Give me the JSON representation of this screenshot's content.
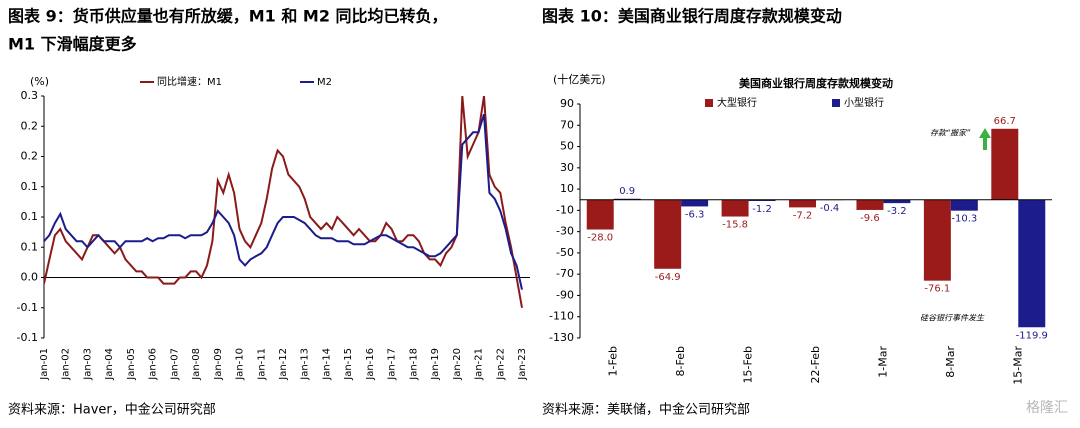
{
  "header": {
    "figure9": [
      "图表 9：货币供应量也有所放缓，M1 和 M2 同比均已转负，",
      "M1 下滑幅度更多"
    ],
    "figure10": "图表 10：美国商业银行周度存款规模变动"
  },
  "sources": [
    "资料来源：Haver，中金公司研究部",
    "资料来源：美联储，中金公司研究部"
  ],
  "watermark": "格隆汇",
  "chart_data": [
    {
      "type": "line",
      "unit": "(%)",
      "legend": "top",
      "categories": [
        "Jan-01",
        null,
        null,
        null,
        "Jan-02",
        null,
        null,
        null,
        "Jan-03",
        null,
        null,
        null,
        "Jan-04",
        null,
        null,
        null,
        "Jan-05",
        null,
        null,
        null,
        "Jan-06",
        null,
        null,
        null,
        "Jan-07",
        null,
        null,
        null,
        "Jan-08",
        null,
        null,
        null,
        "Jan-09",
        null,
        null,
        null,
        "Jan-10",
        null,
        null,
        null,
        "Jan-11",
        null,
        null,
        null,
        "Jan-12",
        null,
        null,
        null,
        "Jan-13",
        null,
        null,
        null,
        "Jan-14",
        null,
        null,
        null,
        "Jan-15",
        null,
        null,
        null,
        "Jan-16",
        null,
        null,
        null,
        "Jan-17",
        null,
        null,
        null,
        "Jan-18",
        null,
        null,
        null,
        "Jan-19",
        null,
        null,
        null,
        "Jan-20",
        null,
        null,
        null,
        "Jan-21",
        null,
        null,
        null,
        "Jan-22",
        null,
        null,
        null,
        "Jan-23"
      ],
      "series": [
        {
          "name": "同比增速：M1",
          "color": "#8b1a1a",
          "values": [
            -0.01,
            0.03,
            0.07,
            0.08,
            0.06,
            0.05,
            0.04,
            0.03,
            0.05,
            0.07,
            0.07,
            0.06,
            0.05,
            0.04,
            0.05,
            0.03,
            0.02,
            0.01,
            0.01,
            0,
            0,
            0,
            -0.01,
            -0.01,
            -0.01,
            0,
            0,
            0.01,
            0.01,
            0,
            0.02,
            0.06,
            0.16,
            0.14,
            0.17,
            0.14,
            0.08,
            0.06,
            0.05,
            0.07,
            0.09,
            0.13,
            0.18,
            0.21,
            0.2,
            0.17,
            0.16,
            0.15,
            0.13,
            0.1,
            0.09,
            0.08,
            0.09,
            0.08,
            0.1,
            0.09,
            0.08,
            0.07,
            0.08,
            0.07,
            0.06,
            0.06,
            0.07,
            0.09,
            0.08,
            0.06,
            0.06,
            0.07,
            0.07,
            0.06,
            0.04,
            0.03,
            0.03,
            0.02,
            0.04,
            0.05,
            0.07,
            0.3,
            0.2,
            0.22,
            0.24,
            0.3,
            0.17,
            0.15,
            0.14,
            0.09,
            0.05,
            0,
            -0.05
          ]
        },
        {
          "name": "M2",
          "color": "#1c1c8c",
          "values": [
            0.06,
            0.07,
            0.09,
            0.105,
            0.08,
            0.07,
            0.06,
            0.06,
            0.05,
            0.06,
            0.07,
            0.06,
            0.06,
            0.06,
            0.05,
            0.06,
            0.06,
            0.06,
            0.06,
            0.065,
            0.06,
            0.065,
            0.065,
            0.07,
            0.07,
            0.07,
            0.065,
            0.07,
            0.07,
            0.07,
            0.075,
            0.09,
            0.11,
            0.1,
            0.09,
            0.07,
            0.03,
            0.02,
            0.03,
            0.035,
            0.04,
            0.05,
            0.07,
            0.09,
            0.1,
            0.1,
            0.1,
            0.095,
            0.09,
            0.08,
            0.07,
            0.065,
            0.065,
            0.065,
            0.06,
            0.06,
            0.06,
            0.055,
            0.055,
            0.055,
            0.06,
            0.065,
            0.07,
            0.07,
            0.065,
            0.06,
            0.055,
            0.05,
            0.05,
            0.045,
            0.04,
            0.035,
            0.035,
            0.04,
            0.05,
            0.06,
            0.07,
            0.22,
            0.23,
            0.24,
            0.24,
            0.27,
            0.14,
            0.13,
            0.11,
            0.08,
            0.04,
            0.02,
            -0.02
          ]
        }
      ],
      "ylim": [
        -0.1,
        0.3
      ],
      "yticks": [
        0.3,
        {
          "value": 0.25,
          "label": "0.2"
        },
        0.2,
        {
          "value": 0.15,
          "label": "0.1"
        },
        0.1,
        {
          "value": 0.05,
          "label": "0.1"
        },
        {
          "value": 0,
          "label": "0.0"
        },
        {
          "value": -0.05,
          "label": "-0.1"
        },
        -0.1
      ]
    },
    {
      "type": "bar",
      "title": "美国商业银行周度存款规模变动",
      "unit": "(十亿美元)",
      "legend": "top",
      "categories": [
        "1-Feb",
        "8-Feb",
        "15-Feb",
        "22-Feb",
        "1-Mar",
        "8-Mar",
        "15-Mar"
      ],
      "series": [
        {
          "name": "大型银行",
          "color": "#9b1b1b",
          "values": [
            -28.0,
            -64.9,
            -15.8,
            -7.2,
            -9.6,
            -76.1,
            66.7
          ],
          "value_labels": [
            "-28.0",
            "-64.9",
            "-15.8",
            "-7.2",
            "-9.6",
            "-76.1",
            "66.7"
          ]
        },
        {
          "name": "小型银行",
          "color": "#1c1c8c",
          "values": [
            0.9,
            -6.3,
            -1.2,
            -0.4,
            -3.2,
            -10.3,
            -119.9
          ],
          "value_labels": [
            "0.9",
            "-6.3",
            "-1.2",
            "-0.4",
            "-3.2",
            "-10.3",
            "-119.9"
          ]
        }
      ],
      "ylim": [
        -130,
        90
      ],
      "yticks": [
        90,
        70,
        50,
        30,
        10,
        -10,
        -30,
        -50,
        -70,
        -90,
        -110,
        -130
      ],
      "annotations": [
        "存款“搬家”",
        "硅谷银行事件发生"
      ]
    }
  ]
}
